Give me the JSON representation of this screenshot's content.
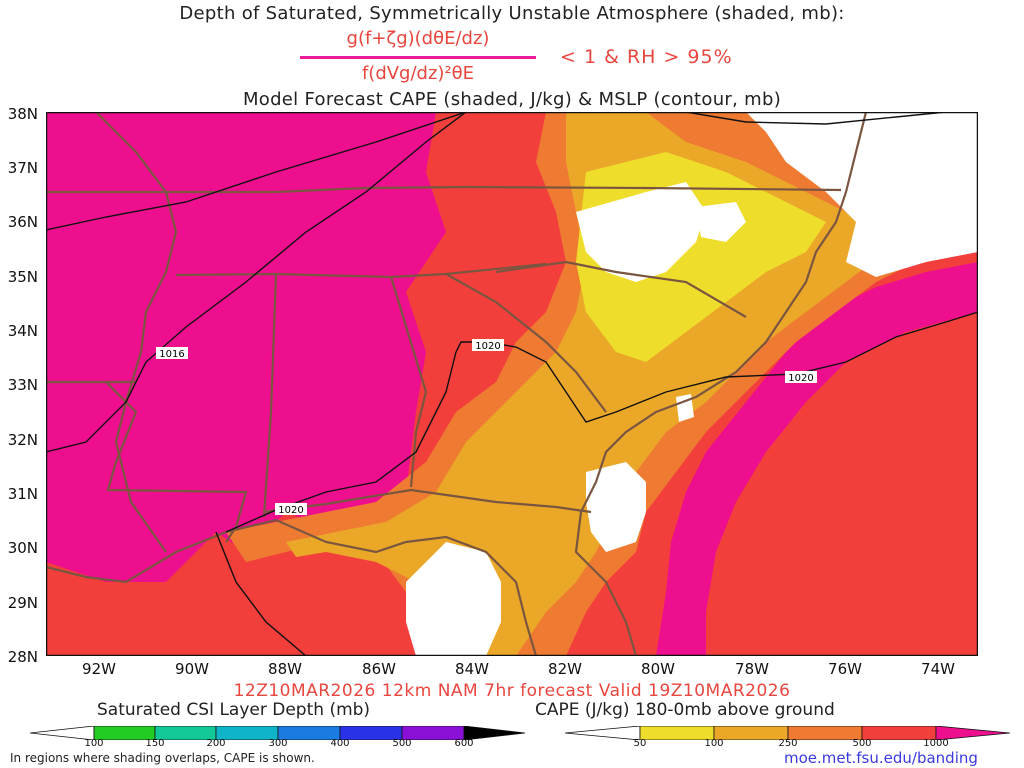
{
  "title": {
    "line1": "Depth of Saturated, Symmetrically Unstable Atmosphere (shaded, mb):",
    "numerator": "g(f+ζg)(dθE/dz)",
    "denominator": "f(dVg/dz)²θE",
    "condition": "< 1 & RH > 95%",
    "line3": "Model Forecast CAPE (shaded, J/kg) & MSLP (contour, mb)"
  },
  "axes": {
    "latitude_labels": [
      "38N",
      "37N",
      "36N",
      "35N",
      "34N",
      "33N",
      "32N",
      "31N",
      "30N",
      "29N",
      "28N"
    ],
    "longitude_labels": [
      "92W",
      "90W",
      "88W",
      "86W",
      "84W",
      "82W",
      "80W",
      "78W",
      "76W",
      "74W"
    ]
  },
  "contours": {
    "labels": [
      "1016",
      "1020",
      "1020",
      "1020"
    ]
  },
  "valid_line": "12Z10MAR2026 12km NAM 7hr forecast Valid 19Z10MAR2026",
  "csi_legend": {
    "title": "Saturated CSI Layer Depth (mb)",
    "ticks": [
      "100",
      "150",
      "200",
      "300",
      "400",
      "500",
      "600"
    ],
    "colors": [
      "#ffffff",
      "#22cc22",
      "#11c896",
      "#10b4c8",
      "#1a7be0",
      "#2a32e8",
      "#8a10d8",
      "#000000"
    ]
  },
  "cape_legend": {
    "title": "CAPE (J/kg) 180-0mb above ground",
    "ticks": [
      "50",
      "100",
      "250",
      "500",
      "1000"
    ],
    "colors": [
      "#ffffff",
      "#eedd2a",
      "#eba828",
      "#ef7b32",
      "#f23f3c",
      "#ee0f8e"
    ]
  },
  "footnote": "In regions where shading overlaps, CAPE is shown.",
  "url": "moe.met.fsu.edu/banding"
}
